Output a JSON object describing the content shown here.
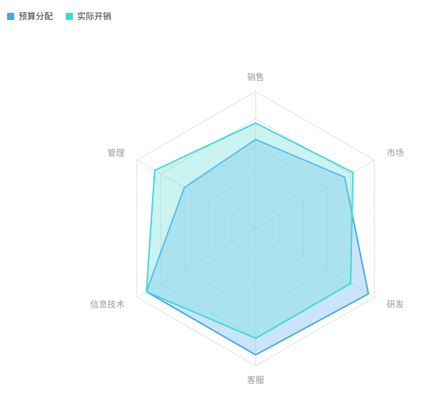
{
  "chart_data": {
    "type": "radar",
    "indicators": [
      "销售",
      "市场",
      "研发",
      "客服",
      "信息技术",
      "管理"
    ],
    "series": [
      {
        "name": "预算分配",
        "values": [
          0.65,
          0.75,
          0.95,
          0.92,
          0.92,
          0.6
        ]
      },
      {
        "name": "实际开销",
        "values": [
          0.77,
          0.82,
          0.8,
          0.8,
          0.92,
          0.85
        ]
      }
    ],
    "max": 1,
    "split_levels": 5,
    "legend_position": "top-left",
    "colors": {
      "budget": "#3fa7ef",
      "budget_fill": "rgba(138,198,246,0.45)",
      "actual": "#3ed8d5",
      "actual_fill": "rgba(122,226,222,0.40)",
      "grid": "#dedede",
      "axis_label": "#999999"
    }
  }
}
